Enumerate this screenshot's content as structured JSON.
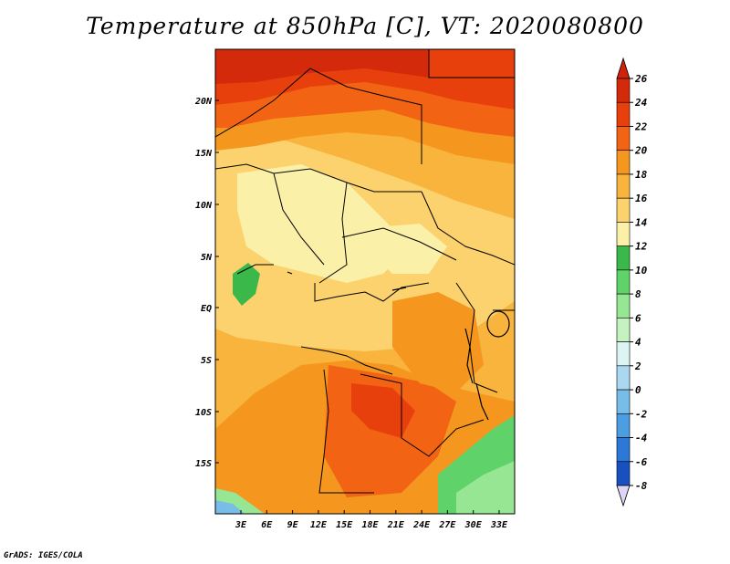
{
  "title": "Temperature at 850hPa [C], VT: 2020080800",
  "credit": "GrADS: IGES/COLA",
  "map": {
    "lat_labels": [
      "20N",
      "15N",
      "10N",
      "5N",
      "EQ",
      "5S",
      "10S",
      "15S"
    ],
    "lon_labels": [
      "3E",
      "6E",
      "9E",
      "12E",
      "15E",
      "18E",
      "21E",
      "24E",
      "27E",
      "30E",
      "33E"
    ]
  },
  "colorbar": {
    "labels": [
      "26",
      "24",
      "22",
      "20",
      "18",
      "16",
      "14",
      "12",
      "10",
      "8",
      "6",
      "4",
      "2",
      "0",
      "-2",
      "-4",
      "-6",
      "-8"
    ],
    "colors": [
      "#d42a0c",
      "#e8400c",
      "#f26414",
      "#f5961e",
      "#f8b43c",
      "#fbd26e",
      "#fbf0a8",
      "#3ab84a",
      "#60d26a",
      "#96e693",
      "#c4f2c0",
      "#dcf4f4",
      "#aad8f0",
      "#78bce8",
      "#4c9ee2",
      "#2c78d6",
      "#1850c0",
      "#0c2a9a",
      "#06106a"
    ],
    "tip_top_color": "#d0210b",
    "tip_bottom_color": "#dcd6f4"
  }
}
